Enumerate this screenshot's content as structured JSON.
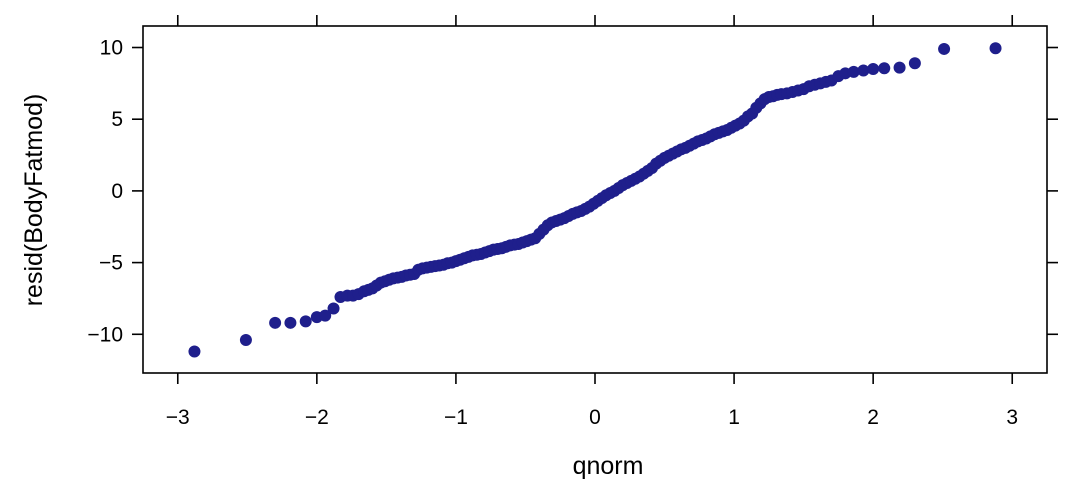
{
  "chart_data": {
    "type": "scatter",
    "title": "",
    "xlabel": "qnorm",
    "ylabel": "resid(BodyFatmod)",
    "xlim": [
      -3.25,
      3.25
    ],
    "ylim": [
      -12.7,
      11.5
    ],
    "x_ticks": [
      -3,
      -2,
      -1,
      0,
      1,
      2,
      3
    ],
    "x_tick_labels": [
      "−3",
      "−2",
      "−1",
      "0",
      "1",
      "2",
      "3"
    ],
    "y_ticks": [
      -10,
      -5,
      0,
      5,
      10
    ],
    "y_tick_labels": [
      "−10",
      "−5",
      "0",
      "5",
      "10"
    ],
    "grid": false,
    "legend": "none",
    "point_color": "#1f1f8c",
    "series": [
      {
        "points": [
          [
            -2.88,
            -11.2
          ],
          [
            -2.51,
            -10.4
          ],
          [
            -2.3,
            -9.2
          ],
          [
            -2.19,
            -9.2
          ],
          [
            -2.08,
            -9.1
          ],
          [
            -2.0,
            -8.8
          ],
          [
            -1.94,
            -8.7
          ],
          [
            -1.88,
            -8.2
          ],
          [
            -1.83,
            -7.4
          ],
          [
            -1.78,
            -7.3
          ],
          [
            -1.74,
            -7.3
          ],
          [
            -1.7,
            -7.2
          ],
          [
            -1.66,
            -7.0
          ],
          [
            -1.63,
            -6.9
          ],
          [
            -1.6,
            -6.8
          ],
          [
            -1.57,
            -6.6
          ],
          [
            -1.54,
            -6.4
          ],
          [
            -1.51,
            -6.3
          ],
          [
            -1.48,
            -6.2
          ],
          [
            -1.45,
            -6.1
          ],
          [
            -1.42,
            -6.05
          ],
          [
            -1.39,
            -6.0
          ],
          [
            -1.36,
            -5.9
          ],
          [
            -1.33,
            -5.85
          ],
          [
            -1.3,
            -5.8
          ],
          [
            -1.27,
            -5.5
          ],
          [
            -1.24,
            -5.4
          ],
          [
            -1.21,
            -5.35
          ],
          [
            -1.18,
            -5.3
          ],
          [
            -1.15,
            -5.25
          ],
          [
            -1.12,
            -5.2
          ],
          [
            -1.09,
            -5.15
          ],
          [
            -1.06,
            -5.05
          ],
          [
            -1.03,
            -5.0
          ],
          [
            -1.0,
            -4.9
          ],
          [
            -0.97,
            -4.8
          ],
          [
            -0.94,
            -4.7
          ],
          [
            -0.91,
            -4.6
          ],
          [
            -0.88,
            -4.5
          ],
          [
            -0.85,
            -4.45
          ],
          [
            -0.82,
            -4.4
          ],
          [
            -0.79,
            -4.3
          ],
          [
            -0.76,
            -4.2
          ],
          [
            -0.73,
            -4.1
          ],
          [
            -0.7,
            -4.05
          ],
          [
            -0.67,
            -4.0
          ],
          [
            -0.64,
            -3.9
          ],
          [
            -0.61,
            -3.8
          ],
          [
            -0.58,
            -3.75
          ],
          [
            -0.55,
            -3.7
          ],
          [
            -0.52,
            -3.6
          ],
          [
            -0.49,
            -3.5
          ],
          [
            -0.46,
            -3.4
          ],
          [
            -0.43,
            -3.3
          ],
          [
            -0.4,
            -3.0
          ],
          [
            -0.37,
            -2.7
          ],
          [
            -0.34,
            -2.4
          ],
          [
            -0.31,
            -2.2
          ],
          [
            -0.28,
            -2.1
          ],
          [
            -0.25,
            -2.0
          ],
          [
            -0.22,
            -1.9
          ],
          [
            -0.19,
            -1.75
          ],
          [
            -0.16,
            -1.6
          ],
          [
            -0.13,
            -1.5
          ],
          [
            -0.1,
            -1.4
          ],
          [
            -0.07,
            -1.25
          ],
          [
            -0.04,
            -1.1
          ],
          [
            -0.01,
            -0.9
          ],
          [
            0.02,
            -0.7
          ],
          [
            0.05,
            -0.5
          ],
          [
            0.08,
            -0.3
          ],
          [
            0.11,
            -0.15
          ],
          [
            0.14,
            0.0
          ],
          [
            0.17,
            0.2
          ],
          [
            0.2,
            0.4
          ],
          [
            0.23,
            0.55
          ],
          [
            0.26,
            0.7
          ],
          [
            0.29,
            0.85
          ],
          [
            0.32,
            1.0
          ],
          [
            0.35,
            1.2
          ],
          [
            0.38,
            1.4
          ],
          [
            0.41,
            1.6
          ],
          [
            0.44,
            1.9
          ],
          [
            0.47,
            2.1
          ],
          [
            0.5,
            2.3
          ],
          [
            0.53,
            2.45
          ],
          [
            0.56,
            2.6
          ],
          [
            0.59,
            2.75
          ],
          [
            0.62,
            2.9
          ],
          [
            0.65,
            3.0
          ],
          [
            0.68,
            3.15
          ],
          [
            0.71,
            3.3
          ],
          [
            0.74,
            3.45
          ],
          [
            0.77,
            3.55
          ],
          [
            0.8,
            3.65
          ],
          [
            0.83,
            3.8
          ],
          [
            0.86,
            3.95
          ],
          [
            0.89,
            4.05
          ],
          [
            0.92,
            4.15
          ],
          [
            0.95,
            4.25
          ],
          [
            0.98,
            4.4
          ],
          [
            1.01,
            4.55
          ],
          [
            1.04,
            4.7
          ],
          [
            1.07,
            4.9
          ],
          [
            1.1,
            5.2
          ],
          [
            1.13,
            5.4
          ],
          [
            1.16,
            5.8
          ],
          [
            1.19,
            6.1
          ],
          [
            1.22,
            6.4
          ],
          [
            1.25,
            6.55
          ],
          [
            1.28,
            6.6
          ],
          [
            1.31,
            6.7
          ],
          [
            1.34,
            6.75
          ],
          [
            1.38,
            6.8
          ],
          [
            1.42,
            6.9
          ],
          [
            1.46,
            7.0
          ],
          [
            1.5,
            7.1
          ],
          [
            1.54,
            7.3
          ],
          [
            1.58,
            7.4
          ],
          [
            1.62,
            7.5
          ],
          [
            1.66,
            7.6
          ],
          [
            1.7,
            7.7
          ],
          [
            1.75,
            8.0
          ],
          [
            1.8,
            8.2
          ],
          [
            1.86,
            8.3
          ],
          [
            1.93,
            8.4
          ],
          [
            2.0,
            8.5
          ],
          [
            2.08,
            8.55
          ],
          [
            2.19,
            8.6
          ],
          [
            2.3,
            8.9
          ],
          [
            2.51,
            9.9
          ],
          [
            2.88,
            9.95
          ]
        ]
      }
    ]
  }
}
